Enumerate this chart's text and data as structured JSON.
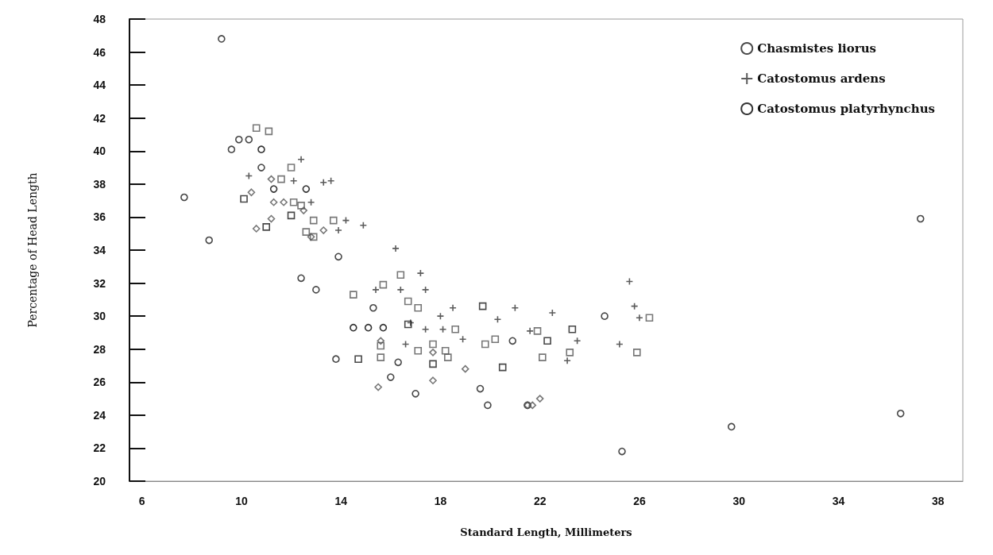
{
  "chart_data": {
    "type": "scatter",
    "xlabel": "Standard Length, Millimeters",
    "ylabel": "Percentage of Head Length",
    "xlim": [
      5.5,
      39
    ],
    "xticks": [
      6,
      10,
      14,
      18,
      22,
      26,
      30,
      34,
      38
    ],
    "ylim": [
      20,
      48
    ],
    "yticks": [
      20,
      22,
      24,
      26,
      28,
      30,
      32,
      34,
      36,
      38,
      40,
      42,
      44,
      46,
      48
    ],
    "grid": false,
    "legend": "top right",
    "series": [
      {
        "name": "Chasmistes liorus",
        "color": "#1a1a1a",
        "marker": "circle",
        "x": [
          9.2,
          9.6,
          9.9,
          10.3,
          10.8,
          7.7,
          8.7,
          12.4,
          13.9,
          13.0,
          15.3,
          13.8,
          16.3,
          16.0,
          17.0,
          19.6,
          19.9,
          21.5,
          20.9,
          24.6,
          25.3,
          29.7,
          36.5,
          37.3
        ],
        "values": [
          46.8,
          40.1,
          40.7,
          40.7,
          39.0,
          37.2,
          34.6,
          32.3,
          33.6,
          31.6,
          30.5,
          27.4,
          27.2,
          26.3,
          25.3,
          25.6,
          24.6,
          24.6,
          28.5,
          30.0,
          21.8,
          23.3,
          24.1,
          35.9
        ]
      },
      {
        "name": "Catostomus ardens",
        "color": "#333333",
        "marker": "cross",
        "x": [
          10.3,
          12.4,
          12.1,
          13.3,
          13.6,
          12.8,
          14.2,
          14.9,
          13.9,
          16.2,
          17.2,
          15.4,
          16.4,
          17.4,
          18.5,
          21.0,
          18.0,
          20.3,
          22.5,
          16.8,
          17.4,
          18.1,
          18.9,
          16.6,
          23.5,
          23.1,
          21.6,
          25.6,
          25.8,
          26.0,
          25.2
        ],
        "values": [
          38.5,
          39.5,
          38.2,
          38.1,
          38.2,
          36.9,
          35.8,
          35.5,
          35.2,
          34.1,
          32.6,
          31.6,
          31.6,
          31.6,
          30.5,
          30.5,
          30.0,
          29.8,
          30.2,
          29.6,
          29.2,
          29.2,
          28.6,
          28.3,
          28.5,
          27.3,
          29.1,
          32.1,
          30.6,
          29.9,
          28.3
        ]
      },
      {
        "name": "Catostomus platyrhynchus",
        "color": "#000000",
        "marker": "circle",
        "x": [
          10.8,
          11.3,
          12.6,
          14.5,
          15.1,
          15.7
        ],
        "values": [
          40.1,
          37.7,
          37.7,
          29.3,
          29.3,
          29.3
        ]
      },
      {
        "color": "#555555",
        "marker": "square",
        "x": [
          10.6,
          11.1,
          12.0,
          11.6,
          12.1,
          12.4,
          12.9,
          13.7,
          12.9,
          12.6,
          16.4,
          15.7,
          14.5,
          16.7,
          17.1,
          18.6,
          17.7,
          17.1,
          18.2,
          18.3,
          19.8,
          20.2,
          15.6,
          15.6,
          21.9,
          22.1,
          23.2,
          25.9,
          26.4
        ],
        "values": [
          41.4,
          41.2,
          39.0,
          38.3,
          36.9,
          36.7,
          35.8,
          35.8,
          34.8,
          35.1,
          32.5,
          31.9,
          31.3,
          30.9,
          30.5,
          29.2,
          28.3,
          27.9,
          27.9,
          27.5,
          28.3,
          28.6,
          28.2,
          27.5,
          29.1,
          27.5,
          27.8,
          27.8,
          29.9
        ]
      },
      {
        "color": "#555555",
        "marker": "diamond",
        "x": [
          11.2,
          10.4,
          11.3,
          11.7,
          12.5,
          11.2,
          10.6,
          13.3,
          12.8,
          15.6,
          17.7,
          19.0,
          17.7,
          15.5,
          21.5,
          21.7,
          22.0
        ],
        "values": [
          38.3,
          37.5,
          36.9,
          36.9,
          36.4,
          35.9,
          35.3,
          35.2,
          34.8,
          28.5,
          27.8,
          26.8,
          26.1,
          25.7,
          24.6,
          24.6,
          25.0
        ]
      },
      {
        "color": "#1a1a1a",
        "marker": "square",
        "x": [
          10.1,
          11.0,
          12.0,
          14.7,
          16.7,
          17.7,
          19.7,
          20.5,
          22.3,
          23.3
        ],
        "values": [
          37.1,
          35.4,
          36.1,
          27.4,
          29.5,
          27.1,
          30.6,
          26.9,
          28.5,
          29.2
        ]
      }
    ]
  }
}
